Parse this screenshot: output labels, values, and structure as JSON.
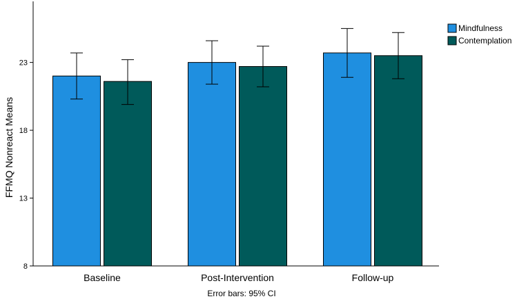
{
  "chart_data": {
    "type": "bar",
    "ylabel": "FFMQ Nonreact Means",
    "xlabel": "",
    "footnote": "Error bars: 95% CI",
    "categories": [
      "Baseline",
      "Post-Intervention",
      "Follow-up"
    ],
    "ylim": [
      8,
      27.5
    ],
    "yticks": [
      8,
      13,
      18,
      23
    ],
    "series": [
      {
        "name": "Mindfulness",
        "color": "#1F8FE0",
        "values": [
          22.0,
          23.0,
          23.7
        ],
        "ci_low": [
          20.3,
          21.4,
          21.9
        ],
        "ci_high": [
          23.7,
          24.6,
          25.5
        ]
      },
      {
        "name": "Contemplation",
        "color": "#005A5A",
        "values": [
          21.6,
          22.7,
          23.5
        ],
        "ci_low": [
          19.9,
          21.2,
          21.8
        ],
        "ci_high": [
          23.2,
          24.2,
          25.2
        ]
      }
    ],
    "legend_position": "top-right"
  }
}
